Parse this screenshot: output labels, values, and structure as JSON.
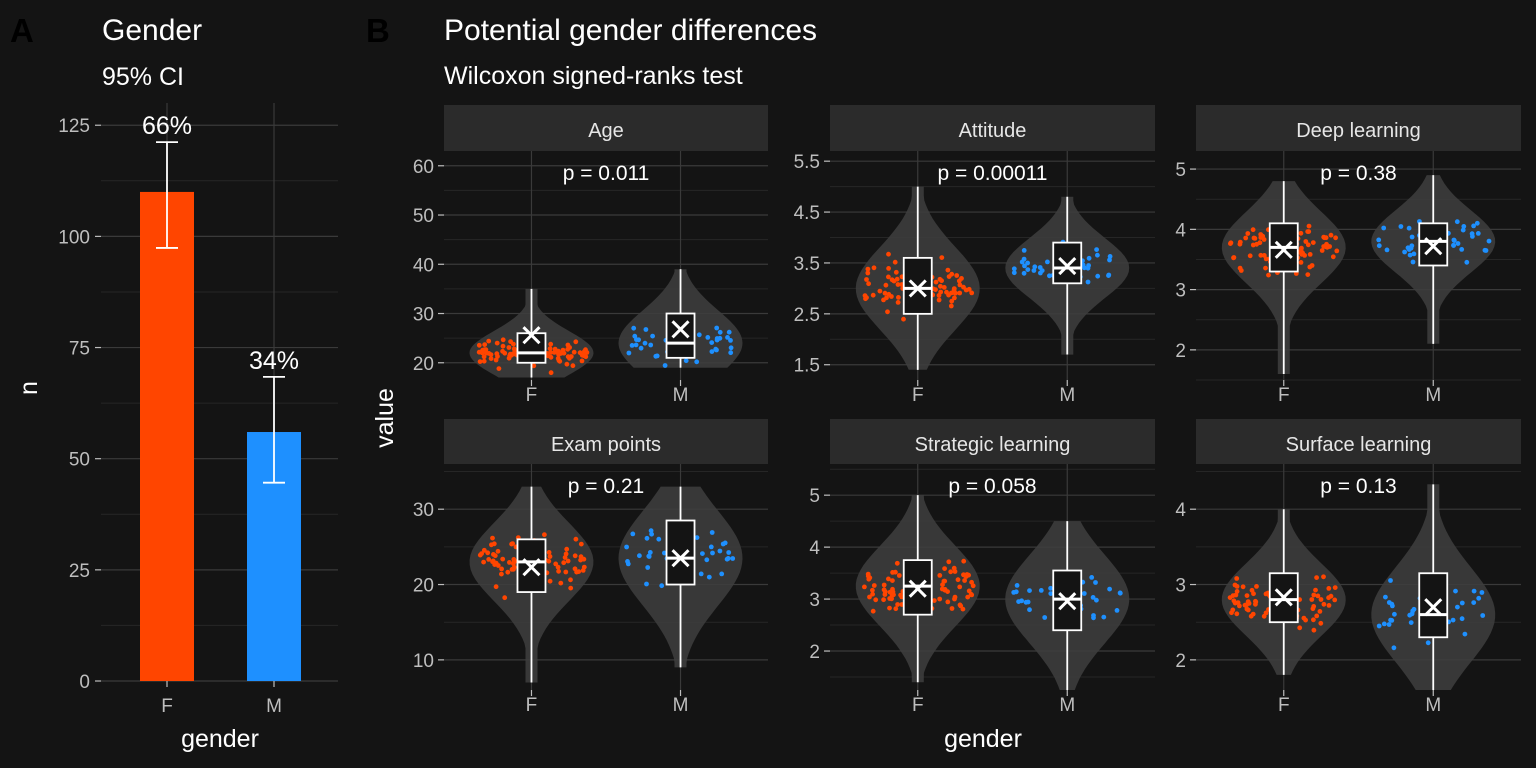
{
  "colors": {
    "female": "#FF4500",
    "male": "#1E90FF",
    "background": "#141414",
    "strip": "#2B2B2B",
    "grid": "#3A3A3A",
    "text": "#FFFFFF",
    "axis_text": "#BEBEBE",
    "violin": "#3E3E3E"
  },
  "panel_a": {
    "tag": "A",
    "title": "Gender",
    "subtitle": "95% CI",
    "chart_data": {
      "type": "bar",
      "categories": [
        "F",
        "M"
      ],
      "values": [
        110,
        56
      ],
      "ci_low": [
        97.4,
        44.6
      ],
      "ci_high": [
        121.2,
        68.4
      ],
      "labels": [
        "66%",
        "34%"
      ],
      "xlabel": "gender",
      "ylabel": "n",
      "ylim": [
        0,
        130
      ],
      "yticks": [
        0,
        25,
        50,
        75,
        100,
        125
      ],
      "grid": true
    }
  },
  "panel_b": {
    "tag": "B",
    "title": "Potential gender differences",
    "subtitle": "Wilcoxon signed-ranks test",
    "xlabel": "gender",
    "ylabel": "value",
    "chart_data": [
      {
        "type": "violin",
        "facet": "Age",
        "p_label": "p = 0.011",
        "categories": [
          "F",
          "M"
        ],
        "ylim": [
          16.5,
          63
        ],
        "yticks": [
          20,
          30,
          40,
          50,
          60
        ],
        "box": [
          {
            "q1": 20,
            "median": 22,
            "q3": 26,
            "whisker_low": 17,
            "whisker_high": 35,
            "mean": 25.6
          },
          {
            "q1": 21,
            "median": 24,
            "q3": 30,
            "whisker_low": 19,
            "whisker_high": 39,
            "mean": 26.8
          }
        ]
      },
      {
        "type": "violin",
        "facet": "Attitude",
        "p_label": "p = 0.00011",
        "categories": [
          "F",
          "M"
        ],
        "ylim": [
          1.2,
          5.7
        ],
        "yticks": [
          1.5,
          2.5,
          3.5,
          4.5,
          5.5
        ],
        "box": [
          {
            "q1": 2.5,
            "median": 3.0,
            "q3": 3.6,
            "whisker_low": 1.4,
            "whisker_high": 5.0,
            "mean": 3.0
          },
          {
            "q1": 3.1,
            "median": 3.4,
            "q3": 3.9,
            "whisker_low": 1.7,
            "whisker_high": 4.8,
            "mean": 3.44
          }
        ]
      },
      {
        "type": "violin",
        "facet": "Deep learning",
        "p_label": "p = 0.38",
        "categories": [
          "F",
          "M"
        ],
        "ylim": [
          1.5,
          5.3
        ],
        "yticks": [
          2,
          3,
          4,
          5
        ],
        "box": [
          {
            "q1": 3.3,
            "median": 3.7,
            "q3": 4.1,
            "whisker_low": 1.6,
            "whisker_high": 4.8,
            "mean": 3.66
          },
          {
            "q1": 3.4,
            "median": 3.8,
            "q3": 4.1,
            "whisker_low": 2.1,
            "whisker_high": 4.9,
            "mean": 3.72
          }
        ]
      },
      {
        "type": "violin",
        "facet": "Exam points",
        "p_label": "p = 0.21",
        "categories": [
          "F",
          "M"
        ],
        "ylim": [
          6,
          36
        ],
        "yticks": [
          10,
          20,
          30
        ],
        "box": [
          {
            "q1": 19,
            "median": 23,
            "q3": 26,
            "whisker_low": 7,
            "whisker_high": 33,
            "mean": 22.3
          },
          {
            "q1": 20,
            "median": 23.5,
            "q3": 28.5,
            "whisker_low": 9,
            "whisker_high": 33,
            "mean": 23.5
          }
        ]
      },
      {
        "type": "violin",
        "facet": "Strategic learning",
        "p_label": "p = 0.058",
        "categories": [
          "F",
          "M"
        ],
        "ylim": [
          1.25,
          5.6
        ],
        "yticks": [
          2,
          3,
          4,
          5
        ],
        "box": [
          {
            "q1": 2.7,
            "median": 3.25,
            "q3": 3.75,
            "whisker_low": 1.4,
            "whisker_high": 5.0,
            "mean": 3.2
          },
          {
            "q1": 2.4,
            "median": 3.0,
            "q3": 3.55,
            "whisker_low": 1.25,
            "whisker_high": 4.5,
            "mean": 2.96
          }
        ]
      },
      {
        "type": "violin",
        "facet": "Surface learning",
        "p_label": "p = 0.13",
        "categories": [
          "F",
          "M"
        ],
        "ylim": [
          1.6,
          4.6
        ],
        "yticks": [
          2,
          3,
          4
        ],
        "box": [
          {
            "q1": 2.5,
            "median": 2.8,
            "q3": 3.15,
            "whisker_low": 1.8,
            "whisker_high": 4.0,
            "mean": 2.83
          },
          {
            "q1": 2.3,
            "median": 2.6,
            "q3": 3.15,
            "whisker_low": 1.6,
            "whisker_high": 4.33,
            "mean": 2.7
          }
        ]
      }
    ]
  }
}
